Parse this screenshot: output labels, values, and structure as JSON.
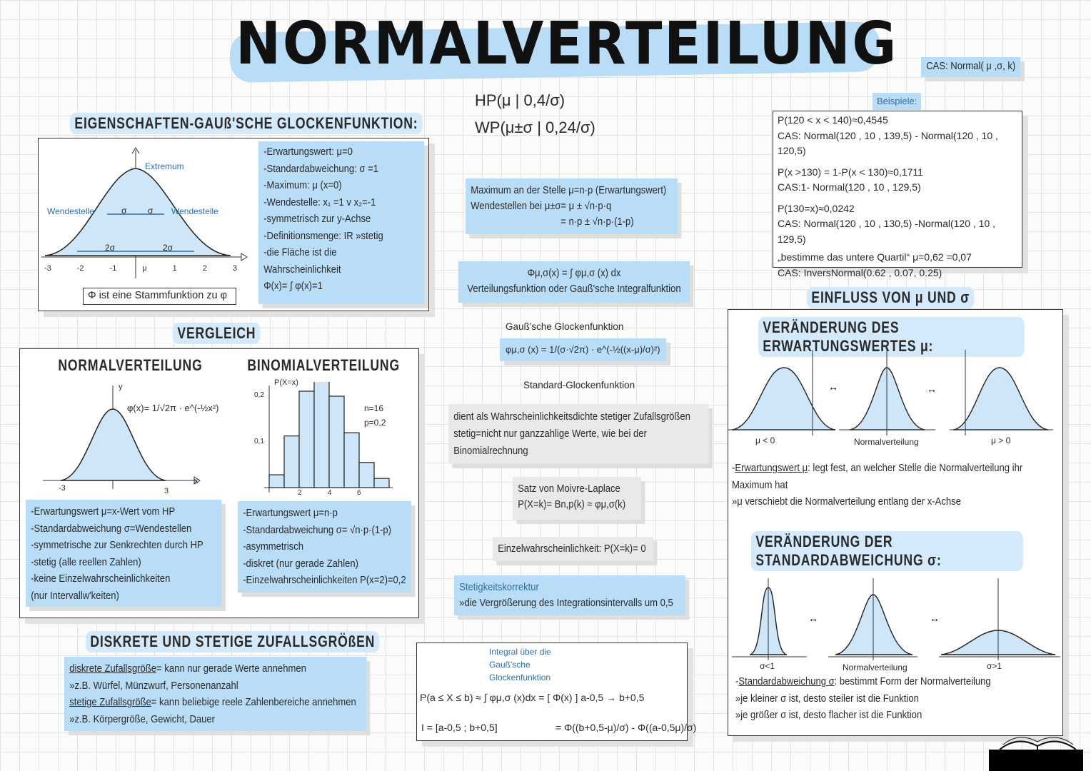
{
  "title": "NORMALVERTEILUNG",
  "hp": "HP(μ | 0,4/σ)",
  "wp": "WP(μ±σ | 0,24/σ)",
  "cas_hint": "CAS: Normal( μ ,σ, k)",
  "examples": {
    "label": "Beispiele:",
    "lines": [
      "P(120 < x < 140)≈0,4545",
      "CAS: Normal(120 , 10 , 139,5) - Normal(120 , 10 , 120,5)",
      "P(x >130) = 1-P(x < 130)≈0,1711",
      "CAS:1- Normal(120 , 10 , 129,5)",
      "P(130=x)≈0,0242",
      "CAS: Normal(120 , 10 , 130,5) -Normal(120 , 10 , 129,5)",
      "„bestimme das untere Quartil“  μ=0,62    =0,07",
      "CAS: InversNormal(0.62 , 0.07, 0.25)"
    ]
  },
  "eigenschaften": {
    "heading": "EIGENSCHAFTEN-GAUß'SCHE GLOCKENFUNKTION:",
    "extremum": "Extremum",
    "wendestelle": "Wendestelle",
    "sigma": "σ",
    "two_sigma": "2σ",
    "ticks": [
      "-3",
      "-2",
      "-1",
      "μ",
      "1",
      "2",
      "3"
    ],
    "stammfunktion": "Φ ist eine Stammfunktion zu φ",
    "props": [
      "-Erwartungswert: μ=0",
      "-Standardabweichung: σ =1",
      "-Maximum: μ (x=0)",
      "-Wendestelle: x₁ =1 v x₂=-1",
      "-symmetrisch zur y-Achse",
      "-Definitionsmenge: IR »stetig",
      "-die Fläche ist die",
      "Wahrscheinlichkeit",
      "Φ(x)= ∫ φ(x)=1"
    ]
  },
  "max_note": [
    "Maximum an der Stelle μ=n·p (Erwartungswert)",
    "Wendestellen bei μ±σ= μ ± √n·p·q",
    "= n·p ± √n·p·(1-p)"
  ],
  "vf_note": [
    "Φμ,σ(x) = ∫ φμ,σ (x) dx",
    "Verteilungsfunktion oder Gauß'sche Integralfunktion"
  ],
  "glocken": {
    "label": "Gauß'sche Glockenfunktion",
    "formula": "φμ,σ (x) = 1/(σ·√2π) · e^(-½((x-μ)/σ)²)",
    "std": "Standard-Glockenfunktion"
  },
  "dichte_note": [
    "dient als Wahrscheinlichkeitsdichte stetiger Zufallsgrößen",
    "stetig=nicht nur ganzzahlige Werte, wie bei der",
    "Binomialrechnung"
  ],
  "moivre": [
    "Satz von Moivre-Laplace",
    "P(X=k)= Bn,p(k) ≈ φμ,σ(k)"
  ],
  "einzel": "Einzelwahrscheinlichkeit: P(X=k)= 0",
  "stetig": [
    "Stetigkeitskorrektur",
    "»die Vergrößerung des Integrationsintervalls um 0,5"
  ],
  "integral": {
    "label": "Integral über die Gauß'sche Glockenfunktion",
    "line1": "P(a ≤ X ≤ b) ≈ ∫ φμ,σ (x)dx = [ Φ(x) ] a-0,5 → b+0,5",
    "line2a": "I = [a-0,5 ; b+0,5]",
    "line2b": "= Φ((b+0,5-μ)/σ) - Φ((a-0,5μ)/σ)"
  },
  "vergleich": {
    "heading": "VERGLEICH",
    "normal": {
      "heading": "NORMALVERTEILUNG",
      "formula": "φ(x)= 1/√2π · e^(-½x²)",
      "ticks": [
        "-3",
        "3"
      ],
      "axis_x": "x",
      "axis_y": "y",
      "props": [
        "-Erwartungswert μ=x-Wert vom HP",
        "-Standardabweichung σ=Wendestellen",
        "-symmetrische zur Senkrechten durch HP",
        "-stetig (alle reellen Zahlen)",
        "-keine Einzelwahrscheinlichkeiten",
        "(nur Intervallw'keiten)"
      ]
    },
    "binom": {
      "heading": "BINOMIALVERTEILUNG",
      "axis_y": "P(X=x)",
      "params": [
        "n=16",
        "p=0,2"
      ],
      "yticks": [
        "0,2",
        "0,1"
      ],
      "xticks": [
        "2",
        "4",
        "6"
      ],
      "values": [
        0.028,
        0.113,
        0.211,
        0.246,
        0.2,
        0.12,
        0.055,
        0.02
      ],
      "props": [
        "-Erwartungswert μ=n·p",
        "-Standardabweichung σ= √n·p·(1-p)",
        "-asymmetrisch",
        "-diskret (nur gerade Zahlen)",
        "-Einzelwahrscheinlichkeiten P(x=2)=0,2"
      ]
    }
  },
  "diskret": {
    "heading": "DISKRETE UND STETIGE ZUFALLSGRÖßEN",
    "lines": [
      [
        "diskrete Zufallsgröße",
        "= kann nur gerade Werte annehmen"
      ],
      [
        "",
        "»z.B. Würfel, Münzwurf, Personenanzahl"
      ],
      [
        "stetige Zufallsgröße",
        "= kann beliebige reele Zahlenbereiche annehmen"
      ],
      [
        "",
        "»z.B. Körpergröße, Gewicht, Dauer"
      ]
    ]
  },
  "einfluss": {
    "heading": "EINFLUSS VON μ UND σ",
    "mu": {
      "heading": "VERÄNDERUNG DES ERWARTUNGSWERTES μ:",
      "labels": [
        "μ < 0",
        "Normalverteilung",
        "μ > 0"
      ],
      "text": [
        [
          "Erwartungswert μ",
          ": legt fest, an welcher Stelle die Normalverteilung ihr"
        ],
        [
          "",
          "Maximum hat"
        ],
        [
          "",
          "»μ verschiebt die Normalverteilung entlang der x-Achse"
        ]
      ]
    },
    "sigma": {
      "heading": "VERÄNDERUNG DER STANDARDABWEICHUNG σ:",
      "labels": [
        "σ<1",
        "Normalverteilung",
        "σ>1"
      ],
      "text": [
        [
          "Standardabweichung σ",
          ": bestimmt Form der Normalverteilung"
        ],
        [
          "",
          "»je kleiner σ ist, desto steiler ist die Funktion"
        ],
        [
          "",
          "»je größer σ ist, desto flacher ist die Funktion"
        ]
      ]
    }
  },
  "colors": {
    "accent": "#b9dcf7",
    "curve": "#2d6ea8"
  }
}
